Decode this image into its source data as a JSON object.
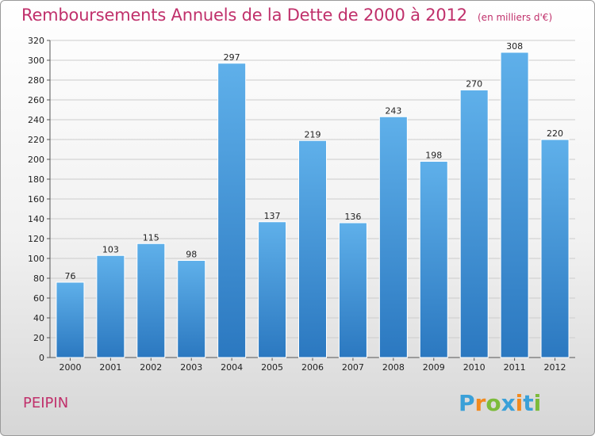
{
  "header": {
    "title": "Remboursements Annuels de la Dette de 2000 à 2012",
    "unit": "(en milliers d'€)"
  },
  "footer": {
    "commune": "PEIPIN",
    "brand": "Proxiti"
  },
  "colors": {
    "title": "#c0306b",
    "bar_top": "#5fb0ea",
    "bar_bottom": "#2b78c0",
    "grid": "#cccccc"
  },
  "chart_data": {
    "type": "bar",
    "title": "Remboursements Annuels de la Dette de 2000 à 2012",
    "subtitle": "(en milliers d'€)",
    "xlabel": "",
    "ylabel": "",
    "categories": [
      "2000",
      "2001",
      "2002",
      "2003",
      "2004",
      "2005",
      "2006",
      "2007",
      "2008",
      "2009",
      "2010",
      "2011",
      "2012"
    ],
    "values": [
      76,
      103,
      115,
      98,
      297,
      137,
      219,
      136,
      243,
      198,
      270,
      308,
      220
    ],
    "ylim": [
      0,
      320
    ],
    "yticks": [
      0,
      20,
      40,
      60,
      80,
      100,
      120,
      140,
      160,
      180,
      200,
      220,
      240,
      260,
      280,
      300,
      320
    ],
    "grid": true,
    "data_labels": true
  }
}
